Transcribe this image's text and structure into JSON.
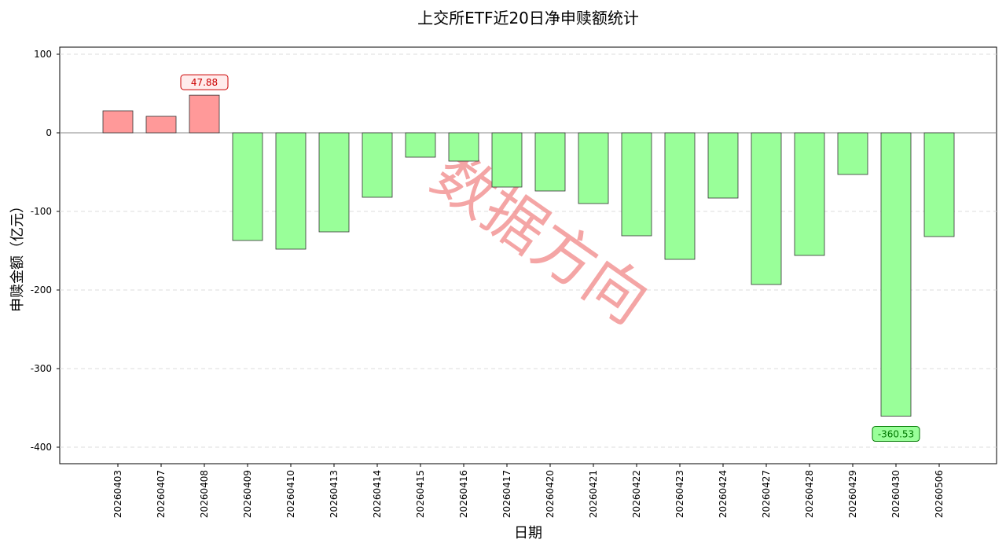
{
  "chart_data": {
    "type": "bar",
    "title": "上交所ETF近20日净申赎额统计",
    "x_label": "日期",
    "y_label": "申赎金额（亿元）",
    "watermark": "数据方向",
    "categories": [
      "20260403",
      "20260407",
      "20260408",
      "20260409",
      "20260410",
      "20260413",
      "20260414",
      "20260415",
      "20260416",
      "20260417",
      "20260420",
      "20260421",
      "20260422",
      "20260423",
      "20260424",
      "20260427",
      "20260428",
      "20260429",
      "20260430",
      "20260506"
    ],
    "values": [
      28,
      21,
      47.88,
      -137,
      -148,
      -126,
      -82,
      -31,
      -36,
      -69,
      -74,
      -90,
      -131,
      -161,
      -83,
      -193,
      -156,
      -53,
      -360.53,
      -132
    ],
    "positive_color": "#ff9999",
    "negative_color": "#99ff99",
    "ylim": [
      -421,
      109
    ],
    "yticks": [
      -400,
      -300,
      -200,
      -100,
      0,
      100
    ],
    "grid": true
  }
}
